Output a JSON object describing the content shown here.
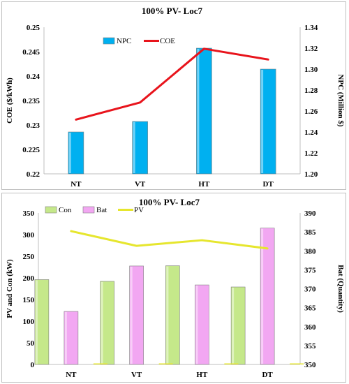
{
  "charts": [
    {
      "type": "bar+line",
      "title": "100% PV- Loc7",
      "categories": [
        "NT",
        "VT",
        "HT",
        "DT"
      ],
      "left_axis": {
        "label": "COE ($/kWh)",
        "ticks": [
          "0.22",
          "0.225",
          "0.23",
          "0.235",
          "0.24",
          "0.245",
          "0.25"
        ],
        "range": [
          0.22,
          0.25
        ]
      },
      "right_axis": {
        "label": "NPC (Million $)",
        "ticks": [
          "1.20",
          "1.22",
          "1.24",
          "1.26",
          "1.28",
          "1.30",
          "1.32",
          "1.34"
        ],
        "range": [
          1.2,
          1.34
        ]
      },
      "legend": {
        "placement": "top",
        "items": [
          {
            "name": "NPC",
            "kind": "bar",
            "color": "#00b0f0"
          },
          {
            "name": "COE",
            "kind": "line",
            "color": "#e8141c"
          }
        ]
      },
      "series": [
        {
          "name": "NPC",
          "kind": "bar",
          "axis": "right",
          "color": "#00b0f0",
          "values": [
            1.24,
            1.25,
            1.32,
            1.3
          ]
        },
        {
          "name": "COE",
          "kind": "line",
          "axis": "left",
          "color": "#e8141c",
          "values": [
            0.2311,
            0.2346,
            0.2456,
            0.2434
          ]
        }
      ]
    },
    {
      "type": "bar+line",
      "title": "100% PV- Loc7",
      "categories": [
        "NT",
        "VT",
        "HT",
        "DT"
      ],
      "left_axis": {
        "label": "PV and Con (kW)",
        "ticks": [
          "0",
          "50",
          "100",
          "150",
          "200",
          "250",
          "300",
          "350"
        ],
        "range": [
          0,
          350
        ]
      },
      "right_axis": {
        "label": "Bat (Quantity)",
        "ticks": [
          "350",
          "355",
          "360",
          "365",
          "370",
          "375",
          "380",
          "385",
          "390"
        ],
        "range": [
          350,
          390
        ]
      },
      "legend": {
        "placement": "top",
        "items": [
          {
            "name": "Con",
            "kind": "bar",
            "color": "#c5e88a"
          },
          {
            "name": "Bat",
            "kind": "bar",
            "color": "#f2a7f2"
          },
          {
            "name": "PV",
            "kind": "line",
            "color": "#e6e62e"
          }
        ]
      },
      "series": [
        {
          "name": "Con",
          "kind": "bar",
          "axis": "left",
          "color": "#c5e88a",
          "values": [
            196,
            192,
            228,
            179
          ]
        },
        {
          "name": "Bat",
          "kind": "bar",
          "axis": "right",
          "color": "#f2a7f2",
          "values": [
            364,
            376,
            371,
            386
          ]
        },
        {
          "name": "PV",
          "kind": "bar",
          "axis": "left",
          "color": "#e6e62e",
          "values": [
            0,
            0,
            0,
            0
          ]
        },
        {
          "name": "PV",
          "kind": "line",
          "axis": "left",
          "color": "#e6e62e",
          "values": [
            308,
            274,
            287,
            268
          ]
        }
      ]
    }
  ],
  "chart_data": [
    {
      "type": "bar",
      "title": "100% PV- Loc7",
      "categories": [
        "NT",
        "VT",
        "HT",
        "DT"
      ],
      "series": [
        {
          "name": "NPC",
          "values": [
            1.24,
            1.25,
            1.32,
            1.3
          ],
          "axis": "right"
        },
        {
          "name": "COE",
          "values": [
            0.2311,
            0.2346,
            0.2456,
            0.2434
          ],
          "axis": "left",
          "type": "line"
        }
      ],
      "ylabel": "COE ($/kWh)",
      "ylim": [
        0.22,
        0.25
      ],
      "y2label": "NPC (Million $)",
      "y2lim": [
        1.2,
        1.34
      ],
      "legend": "top"
    },
    {
      "type": "bar",
      "title": "100% PV- Loc7",
      "categories": [
        "NT",
        "VT",
        "HT",
        "DT"
      ],
      "series": [
        {
          "name": "Con",
          "values": [
            196,
            192,
            228,
            179
          ],
          "axis": "left"
        },
        {
          "name": "Bat",
          "values": [
            364,
            376,
            371,
            386
          ],
          "axis": "right"
        },
        {
          "name": "PV",
          "values": [
            308,
            274,
            287,
            268
          ],
          "axis": "left",
          "type": "line"
        }
      ],
      "ylabel": "PV and Con (kW)",
      "ylim": [
        0,
        350
      ],
      "y2label": "Bat (Quantity)",
      "y2lim": [
        350,
        390
      ],
      "legend": "top"
    }
  ]
}
